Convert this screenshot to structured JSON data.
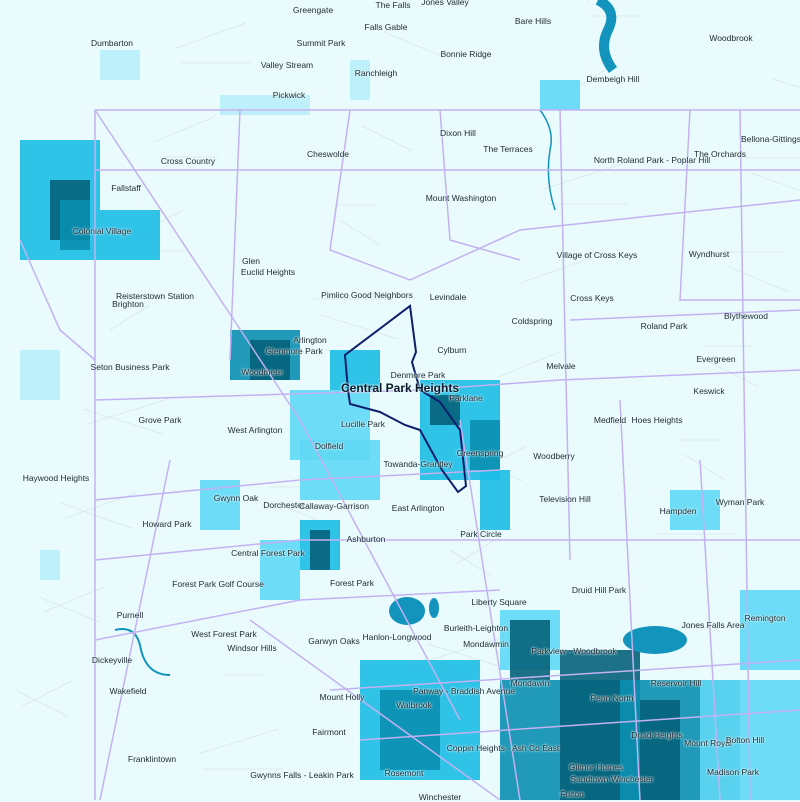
{
  "map": {
    "colors": {
      "background": "#eafbfd",
      "boundary": "#c3b2f2",
      "highlight": "#0d1f6b",
      "water": "#1294bd",
      "choropleth": [
        "#b8eefa",
        "#5fd8f5",
        "#1bbde6",
        "#0a8fb0",
        "#06627a"
      ]
    },
    "highlighted_neighborhood": "Central Park Heights",
    "labels": [
      "Greengate",
      "The Falls",
      "Jones Valley",
      "Falls Gable",
      "Bare Hills",
      "Woodbrook",
      "Dumbarton",
      "Summit Park",
      "Bonnie Ridge",
      "Valley Stream",
      "Ranchleigh",
      "Dembeigh Hill",
      "Pickwick",
      "Dixon Hill",
      "Bellona-Gittings",
      "The Terraces",
      "Cheswolde",
      "North Roland Park - Poplar Hill",
      "The Orchards",
      "Cross Country",
      "Fallstaff",
      "Mount Washington",
      "Colonial Village",
      "Glen",
      "Euclid Heights",
      "Village of Cross Keys",
      "Wyndhurst",
      "Pimlico Good Neighbors",
      "Levindale",
      "Reisterstown Station",
      "Brighton",
      "Cross Keys",
      "Blythewood",
      "Coldspring",
      "Roland Park",
      "Arlington",
      "Cylburn",
      "Glenmore Park",
      "Evergreen",
      "Seton Business Park",
      "Melvale",
      "Woodmere",
      "Denmore Park",
      "Central Park Heights",
      "Keswick",
      "Parklane",
      "Grove Park",
      "Medfield",
      "Hoes Heights",
      "Lucille Park",
      "West Arlington",
      "Dolfield",
      "Greenspring",
      "Woodberry",
      "Towanda-Grantley",
      "Haywood Heights",
      "Television Hill",
      "Wyman Park",
      "Gwynn Oak",
      "Dorchester",
      "Callaway-Garrison",
      "East Arlington",
      "Hampden",
      "Howard Park",
      "Park Circle",
      "Ashburton",
      "Central Forest Park",
      "Forest Park Golf Course",
      "Forest Park",
      "Druid Hill Park",
      "Liberty Square",
      "Purnell",
      "Remington",
      "Jones Falls Area",
      "West Forest Park",
      "Burleith-Leighton",
      "Garwyn Oaks",
      "Hanlon-Longwood",
      "Windsor Hills",
      "Mondawmin",
      "Parkview - Woodbrook",
      "Dickeyville",
      "Mondawin",
      "Reservoir Hill",
      "Wakefield",
      "Panway - Braddish Avenue",
      "Mount Holly",
      "Penn North",
      "Walbrook",
      "Fairmont",
      "Druid Heights",
      "Mount Royal",
      "Bolton Hill",
      "Coppin Heights - Ash Co East",
      "Franklintown",
      "Gilmor Homes",
      "Madison Park",
      "Rosemont",
      "Gwynns Falls - Leakin Park",
      "Sandtown-Winchester",
      "Fulton",
      "Winchester"
    ]
  }
}
